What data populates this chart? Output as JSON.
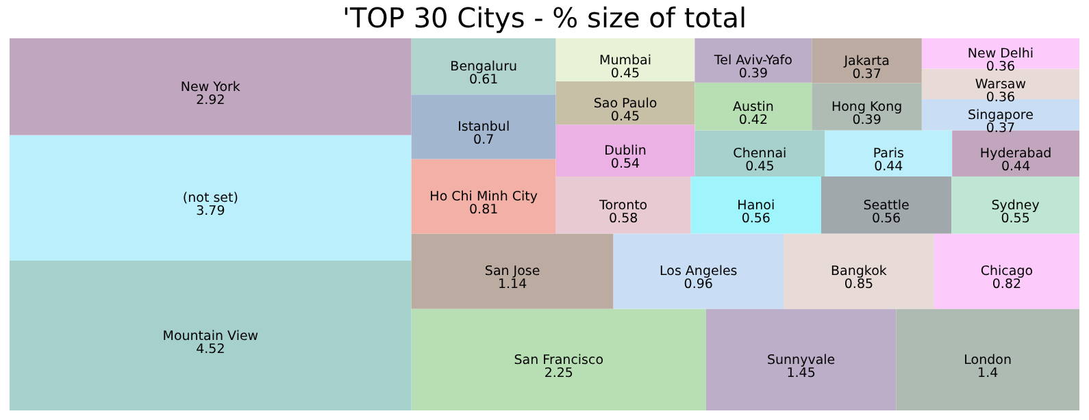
{
  "chart_data": {
    "type": "other",
    "title": "'TOP 30 Citys - % size of total",
    "data_labels": true,
    "categories": [
      "Mountain View",
      "(not set)",
      "New York",
      "San Francisco",
      "Sunnyvale",
      "London",
      "San Jose",
      "Los Angeles",
      "Bangkok",
      "Chicago",
      "Ho Chi Minh City",
      "Istanbul",
      "Bengaluru",
      "Toronto",
      "Hanoi",
      "Seattle",
      "Sydney",
      "Dublin",
      "Sao Paulo",
      "Mumbai",
      "Chennai",
      "Paris",
      "Hyderabad",
      "Austin",
      "Tel Aviv-Yafo",
      "Hong Kong",
      "Jakarta",
      "Singapore",
      "Warsaw",
      "New Delhi"
    ],
    "values": [
      4.52,
      3.79,
      2.92,
      2.25,
      1.45,
      1.4,
      1.14,
      0.96,
      0.85,
      0.82,
      0.81,
      0.7,
      0.61,
      0.58,
      0.56,
      0.56,
      0.55,
      0.54,
      0.45,
      0.45,
      0.45,
      0.44,
      0.44,
      0.42,
      0.39,
      0.39,
      0.37,
      0.37,
      0.36,
      0.36
    ],
    "colors": [
      "#a5d0cc",
      "#bbeffb",
      "#c0a6bf",
      "#b8dfb3",
      "#bcadc9",
      "#adbbb3",
      "#bcaba0",
      "#c9def5",
      "#e8dad7",
      "#fccbfb",
      "#f2b0a6",
      "#a2b6d0",
      "#b0d3cd",
      "#e8cad3",
      "#9ff5fb",
      "#a1a8ab",
      "#bfe6d2",
      "#ecb1e4",
      "#c7bfa6",
      "#e7f2d6",
      "#a6d1cc",
      "#bbeffb",
      "#c1a6bd",
      "#b7dfb3",
      "#bcadc9",
      "#aebcb3",
      "#bcaba0",
      "#c9def5",
      "#e8dad7",
      "#fccbfb"
    ]
  }
}
